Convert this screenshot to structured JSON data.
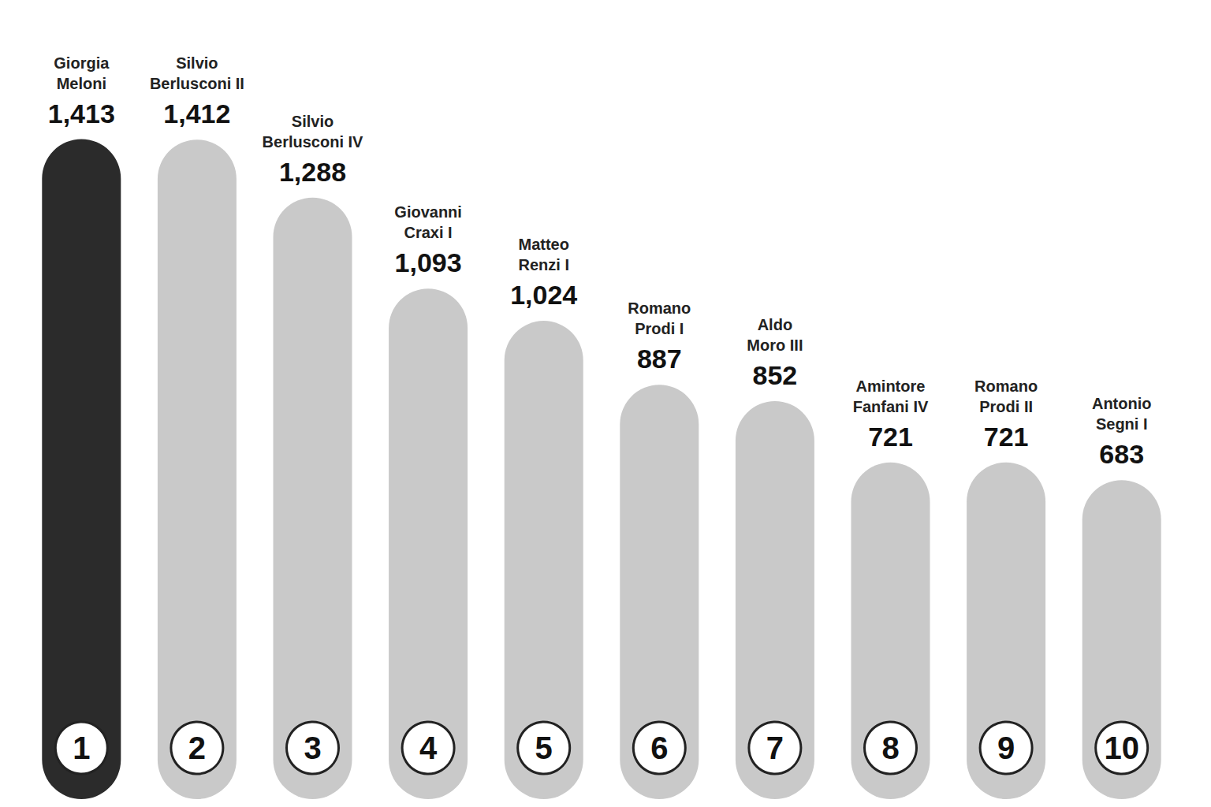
{
  "chart_data": {
    "type": "bar",
    "categories": [
      "Giorgia Meloni",
      "Silvio Berlusconi II",
      "Silvio Berlusconi IV",
      "Giovanni Craxi I",
      "Matteo Renzi I",
      "Romano Prodi I",
      "Aldo Moro III",
      "Amintore Fanfani IV",
      "Romano Prodi II",
      "Antonio Segni I"
    ],
    "values": [
      1413,
      1412,
      1288,
      1093,
      1024,
      887,
      852,
      721,
      721,
      683
    ],
    "value_labels": [
      "1,413",
      "1,412",
      "1,288",
      "1,093",
      "1,024",
      "887",
      "852",
      "721",
      "721",
      "683"
    ],
    "ranks": [
      1,
      2,
      3,
      4,
      5,
      6,
      7,
      8,
      9,
      10
    ],
    "colors": [
      "#2b2b2b",
      "#c9c9c9",
      "#c9c9c9",
      "#c9c9c9",
      "#c9c9c9",
      "#c9c9c9",
      "#c9c9c9",
      "#c9c9c9",
      "#c9c9c9",
      "#c9c9c9"
    ],
    "ylim": [
      0,
      1500
    ],
    "data_labels": true,
    "tick_labels": false,
    "grid": false
  }
}
